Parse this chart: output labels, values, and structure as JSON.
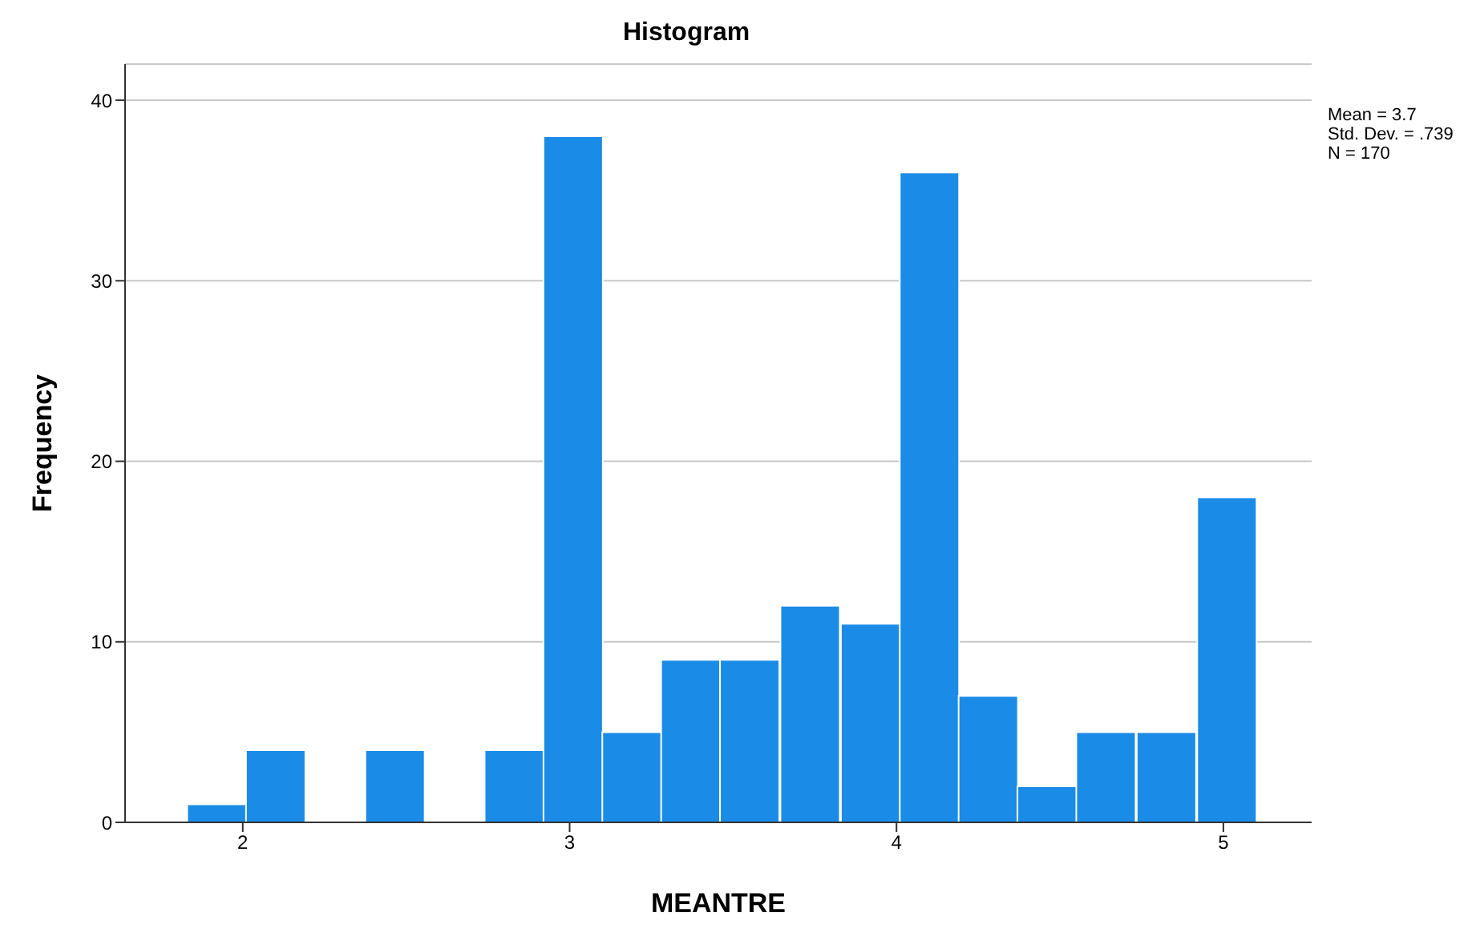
{
  "chart_data": {
    "type": "histogram",
    "title": "Histogram",
    "xlabel": "MEANTRE",
    "ylabel": "Frequency",
    "bins": [
      1.83,
      2.01,
      2.19,
      2.37,
      2.56,
      2.74,
      2.92,
      3.1,
      3.28,
      3.46,
      3.64,
      3.83,
      4.01,
      4.19,
      4.37,
      4.55,
      4.73,
      4.92,
      5.1
    ],
    "values": [
      1,
      4,
      0,
      4,
      0,
      4,
      38,
      5,
      9,
      9,
      12,
      11,
      36,
      7,
      2,
      5,
      5,
      18
    ],
    "color": "#1a8be6",
    "xlim": [
      1.64,
      5.27
    ],
    "xticks": [
      2,
      3,
      4,
      5
    ],
    "ylim": [
      0,
      42
    ],
    "yticks": [
      0,
      10,
      20,
      30,
      40
    ],
    "grid": "y",
    "annotations": [
      "Mean = 3.7",
      "Std. Dev. = .739",
      "N = 170"
    ]
  }
}
